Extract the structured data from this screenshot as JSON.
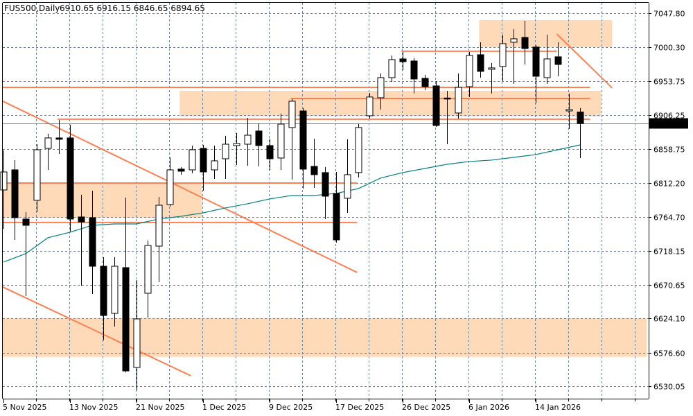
{
  "header": {
    "symbol": "FUS500,Daily",
    "ohlc": "6910.65 6916.15 6846.65 6894.65"
  },
  "colors": {
    "background": "#ffffff",
    "grid": "#708090",
    "bull_fill": "#ffffff",
    "bear_fill": "#000000",
    "candle_outline": "#000000",
    "drawing_lines": "#ff7f50",
    "zones": "#ffdab9",
    "moving_average": "#008080",
    "current_price_line": "#808080",
    "price_label_bg": "#000000",
    "price_label_text": "#ffffff"
  },
  "chart_data": {
    "type": "candlestick",
    "title": "FUS500,Daily",
    "grid": true,
    "ylim": [
      6512.7,
      7062.2
    ],
    "y_ticks": [
      "7047.80",
      "7000.30",
      "6953.75",
      "6906.25",
      "6858.75",
      "6812.20",
      "6764.70",
      "6718.15",
      "6670.65",
      "6624.10",
      "6576.60",
      "6530.05"
    ],
    "x_ticks": [
      {
        "date": "2025-11-05",
        "label": "5 Nov 2025"
      },
      {
        "date": "2025-11-13",
        "label": "13 Nov 2025"
      },
      {
        "date": "2025-11-21",
        "label": "21 Nov 2025"
      },
      {
        "date": "2025-12-01",
        "label": "1 Dec 2025"
      },
      {
        "date": "2025-12-09",
        "label": "9 Dec 2025"
      },
      {
        "date": "2025-12-17",
        "label": "17 Dec 2025"
      },
      {
        "date": "2025-12-26",
        "label": "26 Dec 2025"
      },
      {
        "date": "2026-01-06",
        "label": "6 Jan 2026"
      },
      {
        "date": "2026-01-14",
        "label": "14 Jan 2026"
      }
    ],
    "current_price": "6894.65",
    "candles": [
      [
        "2025-11-05",
        6802.4,
        6857.3,
        6748.5,
        6827.4
      ],
      [
        "2025-11-06",
        6830.3,
        6843.8,
        6733.1,
        6763.9
      ],
      [
        "2025-11-07",
        6762.0,
        6771.6,
        6655.2,
        6753.3
      ],
      [
        "2025-11-10",
        6788.0,
        6865.9,
        6771.6,
        6858.2
      ],
      [
        "2025-11-11",
        6860.1,
        6880.4,
        6830.3,
        6874.6
      ],
      [
        "2025-11-12",
        6874.6,
        6899.6,
        6852.4,
        6872.7
      ],
      [
        "2025-11-13",
        6874.6,
        6892.9,
        6744.7,
        6762.0
      ],
      [
        "2025-11-14",
        6764.9,
        6795.7,
        6669.6,
        6758.1
      ],
      [
        "2025-11-17",
        6763.9,
        6801.4,
        6658.0,
        6696.5
      ],
      [
        "2025-11-18",
        6696.5,
        6709.0,
        6593.6,
        6628.2
      ],
      [
        "2025-11-19",
        6631.1,
        6709.0,
        6612.8,
        6696.5
      ],
      [
        "2025-11-20",
        6694.6,
        6791.8,
        6549.3,
        6551.2
      ],
      [
        "2025-11-21",
        6556.0,
        6677.3,
        6524.3,
        6623.4
      ],
      [
        "2025-11-24",
        6659.0,
        6732.1,
        6625.3,
        6725.4
      ],
      [
        "2025-11-25",
        6724.4,
        6792.8,
        6674.4,
        6781.2
      ],
      [
        "2025-11-26",
        6782.2,
        6847.6,
        6779.3,
        6830.3
      ],
      [
        "2025-11-27",
        6831.3,
        6834.2,
        6823.6,
        6828.4
      ],
      [
        "2025-11-28",
        6830.3,
        6864.0,
        6825.5,
        6858.2
      ],
      [
        "2025-12-01",
        6860.1,
        6865.0,
        6801.4,
        6827.4
      ],
      [
        "2025-12-02",
        6830.3,
        6864.0,
        6817.8,
        6842.8
      ],
      [
        "2025-12-03",
        6845.7,
        6877.5,
        6817.8,
        6865.9
      ],
      [
        "2025-12-04",
        6864.0,
        6881.3,
        6837.0,
        6866.9
      ],
      [
        "2025-12-05",
        6865.9,
        6902.5,
        6836.1,
        6878.4
      ],
      [
        "2025-12-08",
        6884.2,
        6894.8,
        6835.1,
        6864.0
      ],
      [
        "2025-12-09",
        6864.0,
        6873.6,
        6830.3,
        6845.7
      ],
      [
        "2025-12-10",
        6846.7,
        6908.3,
        6830.3,
        6893.8
      ],
      [
        "2025-12-11",
        6889.0,
        6928.5,
        6816.8,
        6925.6
      ],
      [
        "2025-12-12",
        6912.1,
        6915.9,
        6804.3,
        6831.3
      ],
      [
        "2025-12-15",
        6835.1,
        6873.6,
        6805.3,
        6823.6
      ],
      [
        "2025-12-16",
        6826.5,
        6834.2,
        6762.0,
        6793.7
      ],
      [
        "2025-12-17",
        6797.6,
        6827.4,
        6729.3,
        6733.1
      ],
      [
        "2025-12-18",
        6790.9,
        6872.7,
        6770.6,
        6823.6
      ],
      [
        "2025-12-19",
        6826.5,
        6893.8,
        6819.7,
        6889.0
      ],
      [
        "2025-12-22",
        6905.4,
        6937.1,
        6901.5,
        6931.4
      ],
      [
        "2025-12-23",
        6930.4,
        6964.1,
        6914.0,
        6958.3
      ],
      [
        "2025-12-24",
        6958.3,
        6989.1,
        6952.5,
        6983.3
      ],
      [
        "2025-12-26",
        6984.3,
        6993.9,
        6968.9,
        6980.4
      ],
      [
        "2025-12-29",
        6981.4,
        6985.3,
        6936.2,
        6956.4
      ],
      [
        "2025-12-30",
        6957.3,
        6962.2,
        6941.0,
        6945.8
      ],
      [
        "2025-12-31",
        6946.8,
        6953.5,
        6890.0,
        6891.9
      ],
      [
        "2026-01-02",
        6930.0,
        6940.0,
        6865.9,
        6929.4
      ],
      [
        "2026-01-05",
        6909.2,
        6964.1,
        6901.5,
        6944.8
      ],
      [
        "2026-01-06",
        6945.8,
        6993.9,
        6931.4,
        6989.1
      ],
      [
        "2026-01-07",
        6990.1,
        7007.4,
        6958.3,
        6967.0
      ],
      [
        "2026-01-08",
        6969.9,
        6978.5,
        6936.2,
        6971.8
      ],
      [
        "2026-01-09",
        6973.7,
        7018.0,
        6953.5,
        7005.5
      ],
      [
        "2026-01-12",
        7007.4,
        7025.7,
        6949.6,
        7012.2
      ],
      [
        "2026-01-13",
        7014.1,
        7037.2,
        6976.6,
        6998.7
      ],
      [
        "2026-01-14",
        7000.7,
        7003.5,
        6922.7,
        6960.2
      ],
      [
        "2026-01-15",
        6958.3,
        7018.0,
        6949.6,
        6984.3
      ],
      [
        "2026-01-16",
        6987.2,
        7007.4,
        6960.2,
        6976.6
      ],
      [
        "2026-01-19",
        6912.1,
        6936.2,
        6887.1,
        6914.0
      ],
      [
        "2026-01-20",
        6910.65,
        6916.15,
        6846.65,
        6894.65
      ]
    ],
    "moving_average": [
      [
        0,
        6702.3
      ],
      [
        2,
        6713.9
      ],
      [
        4,
        6736.0
      ],
      [
        6,
        6743.7
      ],
      [
        8,
        6753.3
      ],
      [
        10,
        6755.2
      ],
      [
        12,
        6755.2
      ],
      [
        14,
        6762.0
      ],
      [
        16,
        6765.8
      ],
      [
        18,
        6770.6
      ],
      [
        20,
        6777.4
      ],
      [
        22,
        6783.2
      ],
      [
        24,
        6789.9
      ],
      [
        26,
        6794.7
      ],
      [
        28,
        6794.7
      ],
      [
        30,
        6797.6
      ],
      [
        32,
        6804.3
      ],
      [
        34,
        6818.8
      ],
      [
        36,
        6826.5
      ],
      [
        38,
        6832.2
      ],
      [
        40,
        6838.0
      ],
      [
        42,
        6841.9
      ],
      [
        44,
        6843.8
      ],
      [
        46,
        6847.6
      ],
      [
        48,
        6851.5
      ],
      [
        50,
        6858.2
      ],
      [
        52,
        6864.9
      ]
    ],
    "zones": [
      {
        "from_bar": 42.9,
        "to_bar": 54.9,
        "high": 7038.2,
        "low": 7000.7
      },
      {
        "from_bar": 15.9,
        "to_bar": 53.9,
        "high": 6940.0,
        "low": 6904.4
      },
      {
        "from_bar": -0.1,
        "to_bar": 17.9,
        "high": 6812.0,
        "low": 6763.9
      },
      {
        "from_bar": -0.1,
        "to_bar": 58,
        "high": 6624.4,
        "low": 6570.7
      }
    ],
    "horizontal_lines": [
      {
        "price": 6944.8,
        "from_bar": -0.1,
        "to_bar": 52.9
      },
      {
        "price": 6929.4,
        "from_bar": 25.9,
        "to_bar": 52.9
      },
      {
        "price": 6900.6,
        "from_bar": 4.9,
        "to_bar": 52.9
      },
      {
        "price": 6994.9,
        "from_bar": 35.9,
        "to_bar": 49.9
      },
      {
        "price": 6812.0,
        "from_bar": -0.1,
        "to_bar": 31.9
      },
      {
        "price": 6757.2,
        "from_bar": -0.1,
        "to_bar": 31.9
      }
    ],
    "trend_lines": [
      {
        "bar1": -0.06,
        "price1": 6925.6,
        "bar2": 31.9,
        "price2": 6687.9
      },
      {
        "bar1": -0.06,
        "price1": 6667.7,
        "bar2": 16.9,
        "price2": 6544.5
      },
      {
        "bar1": 49.9,
        "price1": 7018.9,
        "bar2": 54.9,
        "price2": 6943.9
      }
    ]
  }
}
